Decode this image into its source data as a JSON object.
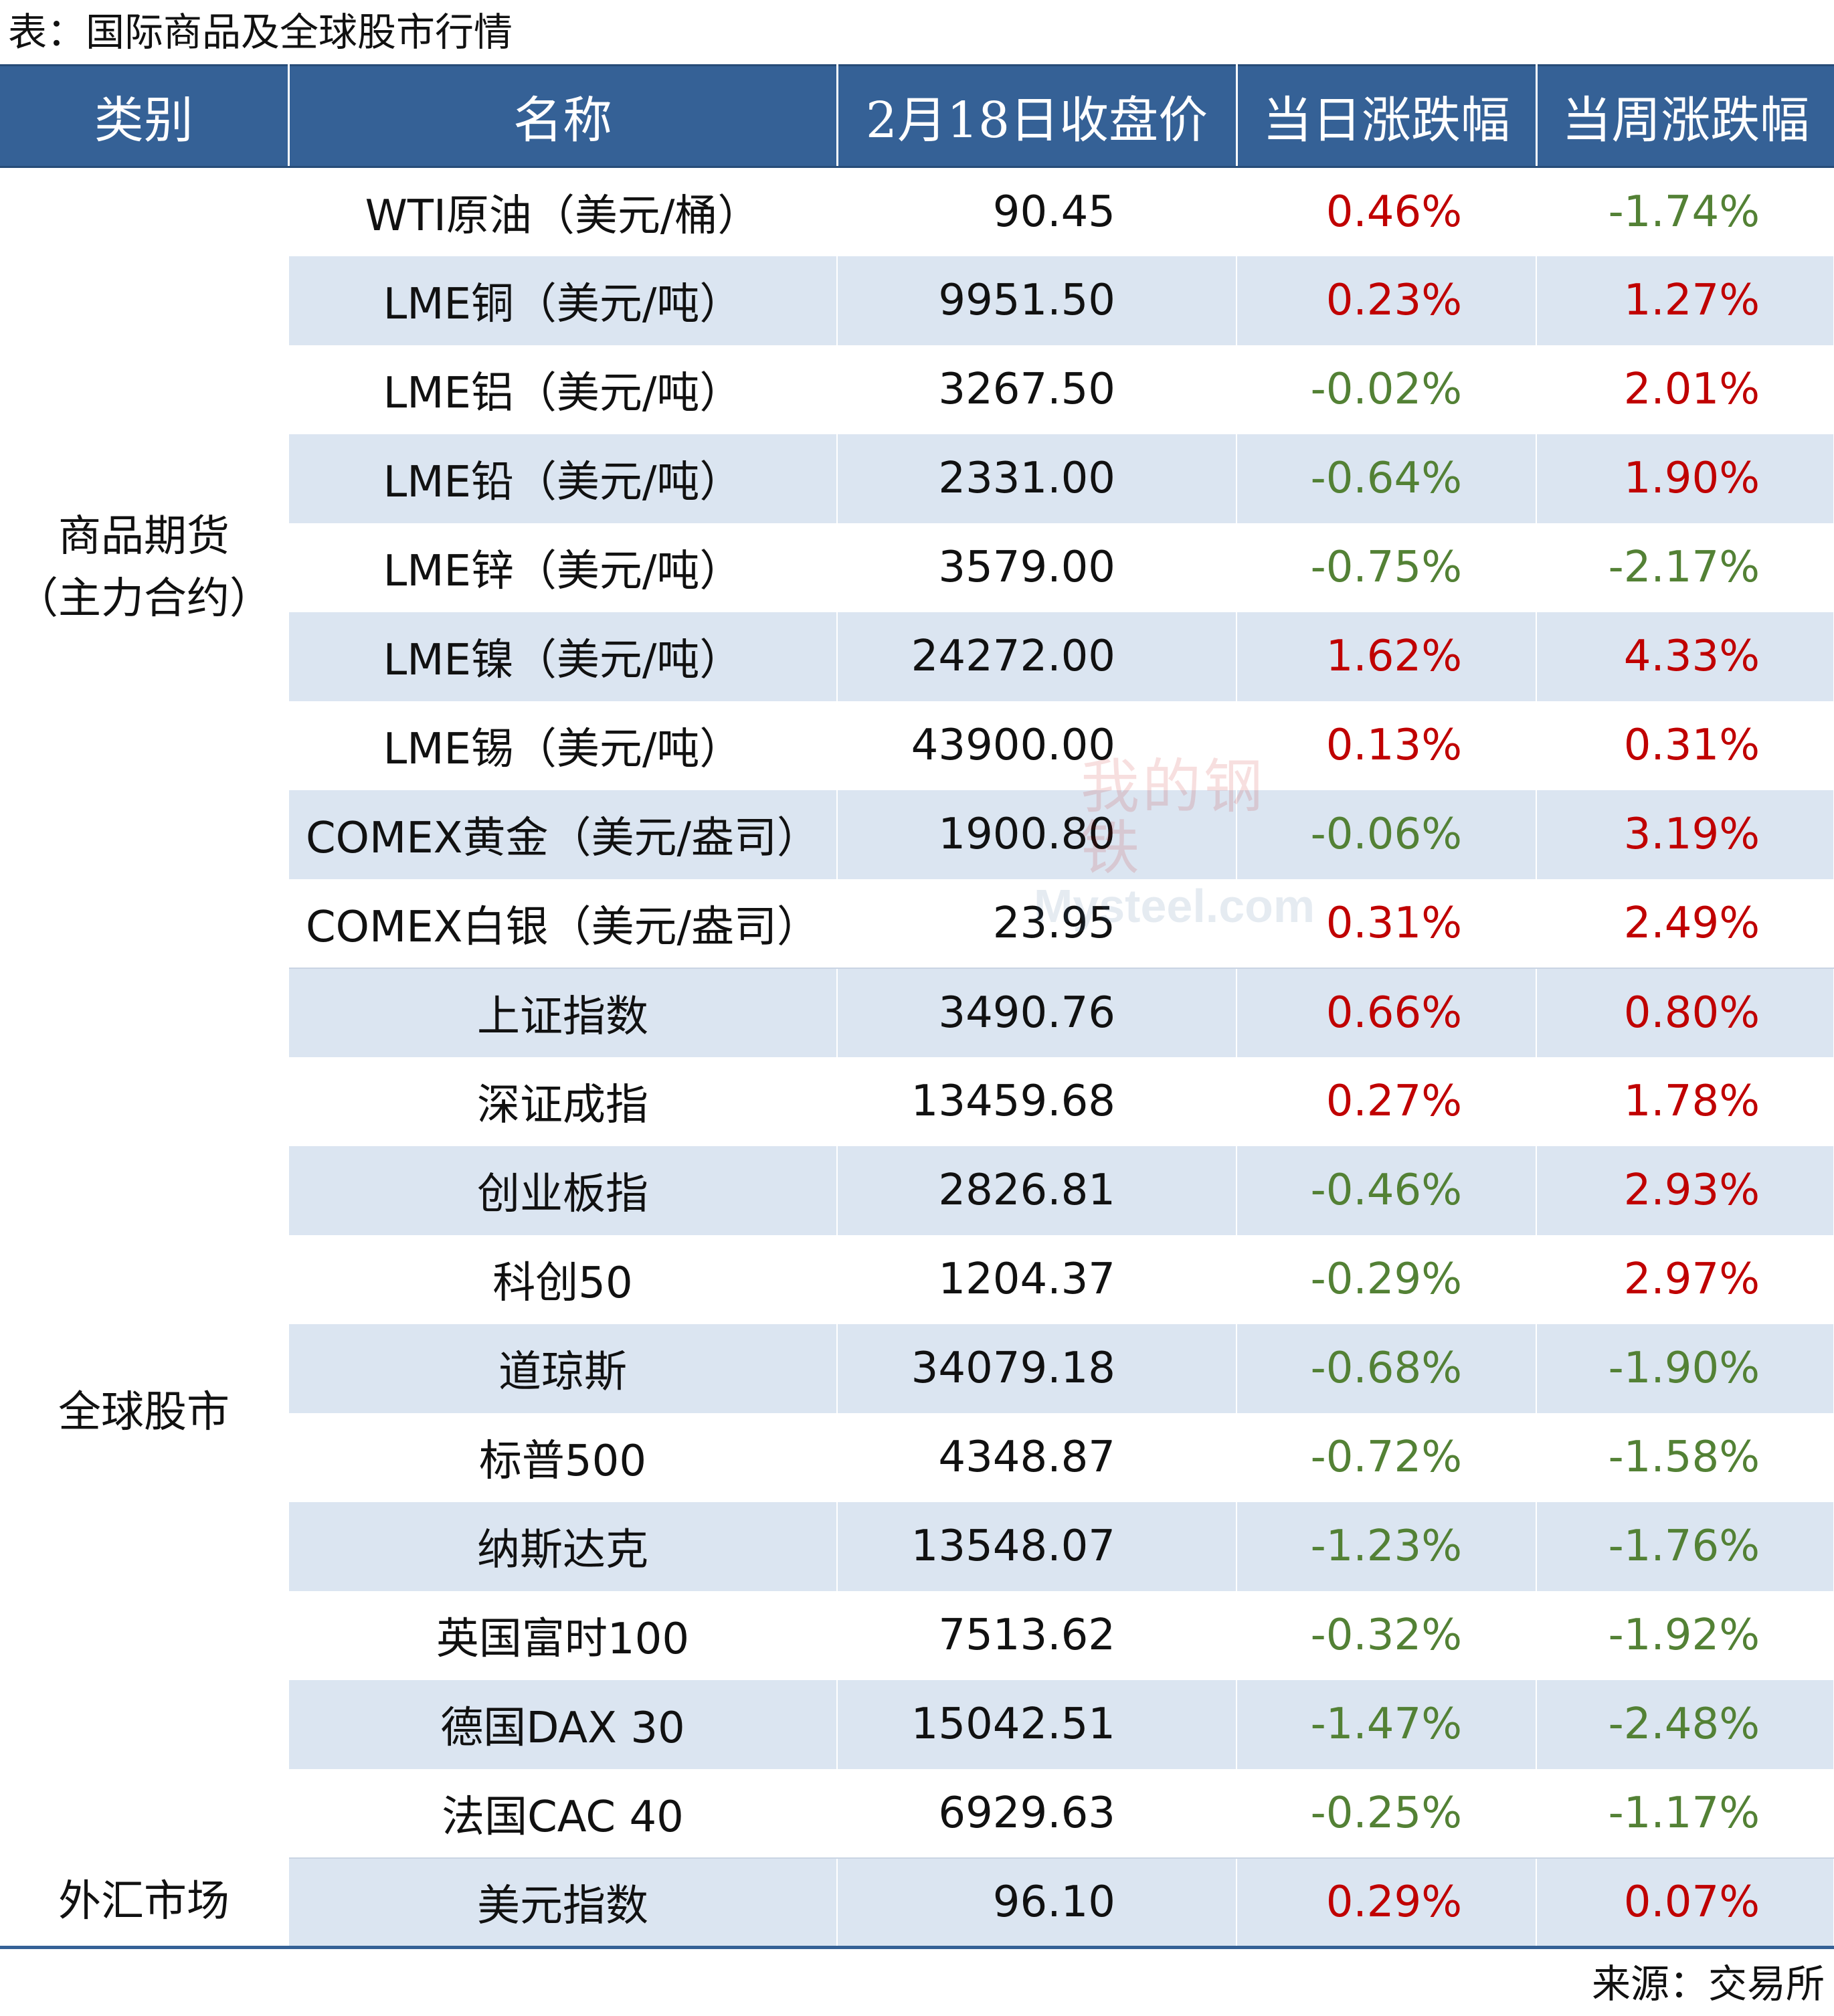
{
  "title": "表：国际商品及全球股市行情",
  "headers": [
    "类别",
    "名称",
    "2月18日收盘价",
    "当日涨跌幅",
    "当周涨跌幅"
  ],
  "groups": [
    {
      "category": [
        "商品期货",
        "（主力合约）"
      ],
      "rows": [
        {
          "name": "WTI原油（美元/桶）",
          "price": "90.45",
          "day": "0.46%",
          "week": "-1.74%"
        },
        {
          "name": "LME铜（美元/吨）",
          "price": "9951.50",
          "day": "0.23%",
          "week": "1.27%"
        },
        {
          "name": "LME铝（美元/吨）",
          "price": "3267.50",
          "day": "-0.02%",
          "week": "2.01%"
        },
        {
          "name": "LME铅（美元/吨）",
          "price": "2331.00",
          "day": "-0.64%",
          "week": "1.90%"
        },
        {
          "name": "LME锌（美元/吨）",
          "price": "3579.00",
          "day": "-0.75%",
          "week": "-2.17%"
        },
        {
          "name": "LME镍（美元/吨）",
          "price": "24272.00",
          "day": "1.62%",
          "week": "4.33%"
        },
        {
          "name": "LME锡（美元/吨）",
          "price": "43900.00",
          "day": "0.13%",
          "week": "0.31%"
        },
        {
          "name": "COMEX黄金（美元/盎司）",
          "price": "1900.80",
          "day": "-0.06%",
          "week": "3.19%"
        },
        {
          "name": "COMEX白银（美元/盎司）",
          "price": "23.95",
          "day": "0.31%",
          "week": "2.49%"
        }
      ]
    },
    {
      "category": [
        "全球股市"
      ],
      "rows": [
        {
          "name": "上证指数",
          "price": "3490.76",
          "day": "0.66%",
          "week": "0.80%"
        },
        {
          "name": "深证成指",
          "price": "13459.68",
          "day": "0.27%",
          "week": "1.78%"
        },
        {
          "name": "创业板指",
          "price": "2826.81",
          "day": "-0.46%",
          "week": "2.93%"
        },
        {
          "name": "科创50",
          "price": "1204.37",
          "day": "-0.29%",
          "week": "2.97%"
        },
        {
          "name": "道琼斯",
          "price": "34079.18",
          "day": "-0.68%",
          "week": "-1.90%"
        },
        {
          "name": "标普500",
          "price": "4348.87",
          "day": "-0.72%",
          "week": "-1.58%"
        },
        {
          "name": "纳斯达克",
          "price": "13548.07",
          "day": "-1.23%",
          "week": "-1.76%"
        },
        {
          "name": "英国富时100",
          "price": "7513.62",
          "day": "-0.32%",
          "week": "-1.92%"
        },
        {
          "name": "德国DAX 30",
          "price": "15042.51",
          "day": "-1.47%",
          "week": "-2.48%"
        },
        {
          "name": "法国CAC 40",
          "price": "6929.63",
          "day": "-0.25%",
          "week": "-1.17%"
        }
      ]
    },
    {
      "category": [
        "外汇市场"
      ],
      "rows": [
        {
          "name": "美元指数",
          "price": "96.10",
          "day": "0.29%",
          "week": "0.07%"
        }
      ]
    }
  ],
  "source": "来源：交易所",
  "watermark": {
    "cn": "我的钢铁",
    "en": "Mysteel.com"
  },
  "colors": {
    "header_bg": "#356196",
    "row_shade": "#dbe5f1",
    "up": "#c00000",
    "down": "#538135"
  }
}
